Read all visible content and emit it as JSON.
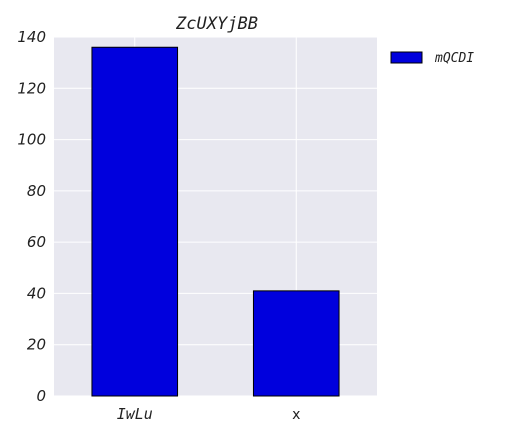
{
  "chart_data": {
    "type": "bar",
    "title": "ZcUXYjBB",
    "categories": [
      "IwLu",
      "x"
    ],
    "series": [
      {
        "name": "mQCDI",
        "values": [
          136,
          41
        ],
        "color": "#0000dd"
      }
    ],
    "xlabel": "",
    "ylabel": "",
    "ylim": [
      0,
      140
    ],
    "yticks": [
      0,
      20,
      40,
      60,
      80,
      100,
      120,
      140
    ],
    "grid": true,
    "legend_position": "outside-top-right",
    "background_color": "#e8e8f0",
    "grid_color": "#ffffff"
  }
}
